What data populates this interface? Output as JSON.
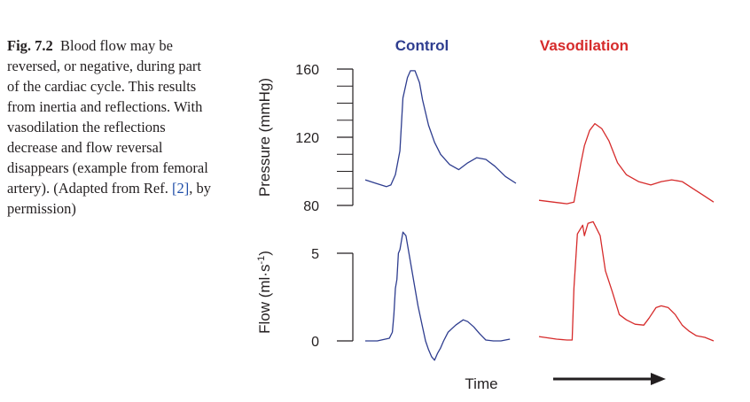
{
  "caption": {
    "fig_label": "Fig. 7.2",
    "text_before_ref": "Blood flow may be reversed, or negative, during part of the cardiac cycle. This results from inertia and reflections. With vasodilation the reflections decrease and flow reversal disappears (example from femoral artery). (Adapted from Ref.",
    "ref": "[2]",
    "text_after_ref": ", by permission)"
  },
  "colors": {
    "control": "#2e3d8f",
    "vasodilation": "#d62b2b",
    "ref_link": "#1f4ea8",
    "text": "#231f20"
  },
  "chart_data": [
    {
      "type": "line",
      "title": "",
      "panel": "pressure",
      "ylabel": "Pressure (mmHg)",
      "ylim": [
        80,
        160
      ],
      "yticks": [
        80,
        120,
        160
      ],
      "xlabel": "",
      "series": [
        {
          "name": "Control",
          "color": "#2e3d8f",
          "x": [
            0,
            0.07,
            0.14,
            0.17,
            0.2,
            0.23,
            0.25,
            0.28,
            0.3,
            0.33,
            0.36,
            0.38,
            0.42,
            0.46,
            0.5,
            0.56,
            0.62,
            0.68,
            0.74,
            0.8,
            0.86,
            0.93,
            1.0
          ],
          "values": [
            95,
            93,
            91,
            92,
            98,
            112,
            143,
            155,
            159,
            159,
            152,
            142,
            127,
            117,
            110,
            104,
            101,
            105,
            108,
            107,
            103,
            97,
            93
          ]
        },
        {
          "name": "Vasodilation",
          "color": "#d62b2b",
          "x": [
            0,
            0.08,
            0.16,
            0.2,
            0.24,
            0.26,
            0.29,
            0.32,
            0.36,
            0.4,
            0.45,
            0.5,
            0.57,
            0.64,
            0.7,
            0.76,
            0.82,
            0.88,
            0.94,
            1.0
          ],
          "values": [
            83,
            82,
            81,
            82,
            105,
            115,
            124,
            128,
            125,
            118,
            105,
            98,
            94,
            92,
            94,
            95,
            94,
            90,
            86,
            82
          ]
        }
      ]
    },
    {
      "type": "line",
      "title": "",
      "panel": "flow",
      "ylabel": "Flow (ml·s-1)",
      "ylabel_main": "Flow (ml·s",
      "ylabel_sup": "-1",
      "ylabel_end": ")",
      "ylim": [
        -1.0,
        6.3
      ],
      "yticks": [
        0,
        5
      ],
      "xlabel": "Time",
      "series": [
        {
          "name": "Control",
          "color": "#2e3d8f",
          "x": [
            0,
            0.08,
            0.16,
            0.18,
            0.19,
            0.2,
            0.21,
            0.22,
            0.23,
            0.25,
            0.27,
            0.3,
            0.33,
            0.35,
            0.38,
            0.4,
            0.42,
            0.44,
            0.46,
            0.48,
            0.5,
            0.52,
            0.55,
            0.6,
            0.65,
            0.68,
            0.72,
            0.76,
            0.8,
            0.85,
            0.9,
            0.96
          ],
          "values": [
            0,
            0,
            0.15,
            0.5,
            1.5,
            3.0,
            3.5,
            5.0,
            5.2,
            6.2,
            6.0,
            4.5,
            3.0,
            2.0,
            0.8,
            0.0,
            -0.5,
            -0.9,
            -1.1,
            -0.7,
            -0.4,
            0.0,
            0.5,
            0.9,
            1.2,
            1.1,
            0.8,
            0.4,
            0.05,
            0.0,
            0.0,
            0.1
          ]
        },
        {
          "name": "Vasodilation",
          "color": "#d62b2b",
          "x": [
            0,
            0.1,
            0.16,
            0.19,
            0.2,
            0.22,
            0.25,
            0.26,
            0.28,
            0.31,
            0.35,
            0.38,
            0.42,
            0.46,
            0.5,
            0.55,
            0.6,
            0.63,
            0.67,
            0.7,
            0.74,
            0.78,
            0.82,
            0.86,
            0.9,
            0.95,
            1.0
          ],
          "values": [
            0.25,
            0.1,
            0.05,
            0.05,
            3.0,
            6.1,
            6.6,
            6.0,
            6.7,
            6.8,
            6.0,
            4.0,
            2.8,
            1.5,
            1.2,
            0.95,
            0.9,
            1.3,
            1.9,
            2.0,
            1.9,
            1.5,
            0.9,
            0.55,
            0.3,
            0.2,
            0.0
          ]
        }
      ]
    }
  ],
  "labels": {
    "control": "Control",
    "vasodilation": "Vasodilation",
    "time": "Time",
    "pressure_axis": "Pressure (mmHg)"
  }
}
